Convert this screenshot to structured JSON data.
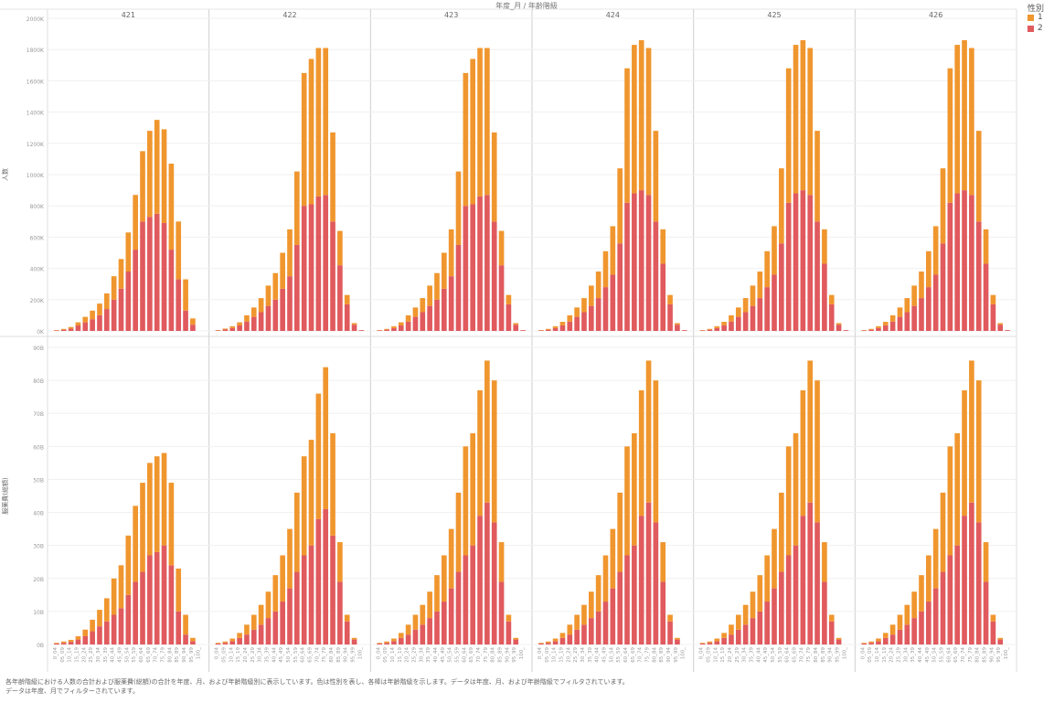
{
  "header_title": "年度_月 / 年齢階級",
  "years": [
    "421",
    "422",
    "423",
    "424",
    "425",
    "426"
  ],
  "legend": {
    "title": "性別",
    "items": [
      {
        "label": "1",
        "color": "#f0962e"
      },
      {
        "label": "2",
        "color": "#e05a5e"
      }
    ]
  },
  "caption": [
    "各年齢階級における人数の合計および服薬費(総額)の合計を年度、月、および年齢階級別に表示しています。色は性別を表し、各棒は年齢階級を示します。データは年度、月、および年齢階級でフィルタされています。",
    "データは年度、月でフィルターされています。"
  ],
  "chart_data": [
    {
      "type": "bar",
      "stacked": true,
      "ylabel": "人数",
      "yticks": [
        "0K",
        "200K",
        "400K",
        "600K",
        "800K",
        "1000K",
        "1200K",
        "1400K",
        "1600K",
        "1800K",
        "2000K"
      ],
      "ylim": [
        0,
        2000
      ],
      "grid": true,
      "panels": [
        {
          "year": "421",
          "series": [
            {
              "name": "1",
              "values": [
                2,
                5,
                10,
                20,
                35,
                55,
                75,
                100,
                150,
                190,
                250,
                350,
                450,
                550,
                600,
                600,
                550,
                370,
                200,
                40,
                0
              ]
            },
            {
              "name": "2",
              "values": [
                3,
                8,
                15,
                35,
                55,
                75,
                100,
                140,
                200,
                270,
                380,
                520,
                700,
                730,
                750,
                690,
                520,
                330,
                130,
                40,
                0
              ]
            }
          ]
        },
        {
          "year": "422",
          "series": [
            {
              "name": "1",
              "values": [
                2,
                6,
                12,
                20,
                40,
                60,
                90,
                130,
                170,
                230,
                300,
                470,
                850,
                930,
                950,
                940,
                570,
                220,
                60,
                10,
                0
              ]
            },
            {
              "name": "2",
              "values": [
                3,
                9,
                18,
                35,
                60,
                90,
                120,
                160,
                200,
                270,
                350,
                550,
                800,
                810,
                860,
                870,
                700,
                420,
                170,
                40,
                5
              ]
            }
          ]
        },
        {
          "year": "423",
          "series": [
            {
              "name": "1",
              "values": [
                2,
                5,
                12,
                20,
                40,
                60,
                90,
                130,
                170,
                230,
                300,
                470,
                850,
                930,
                950,
                940,
                570,
                220,
                60,
                10,
                0
              ]
            },
            {
              "name": "2",
              "values": [
                3,
                8,
                18,
                35,
                60,
                90,
                120,
                160,
                200,
                270,
                350,
                550,
                800,
                810,
                860,
                870,
                700,
                420,
                170,
                40,
                5
              ]
            }
          ]
        },
        {
          "year": "424",
          "series": [
            {
              "name": "1",
              "values": [
                2,
                5,
                12,
                22,
                40,
                60,
                90,
                130,
                170,
                230,
                310,
                480,
                860,
                950,
                960,
                940,
                580,
                220,
                60,
                10,
                0
              ]
            },
            {
              "name": "2",
              "values": [
                3,
                8,
                18,
                36,
                60,
                90,
                120,
                160,
                210,
                280,
                360,
                560,
                820,
                880,
                900,
                870,
                700,
                430,
                170,
                40,
                5
              ]
            }
          ]
        },
        {
          "year": "425",
          "series": [
            {
              "name": "1",
              "values": [
                2,
                5,
                12,
                22,
                40,
                60,
                90,
                130,
                170,
                230,
                310,
                480,
                860,
                950,
                960,
                940,
                580,
                220,
                60,
                10,
                0
              ]
            },
            {
              "name": "2",
              "values": [
                3,
                8,
                18,
                36,
                60,
                90,
                120,
                160,
                210,
                280,
                360,
                560,
                820,
                880,
                900,
                870,
                700,
                430,
                170,
                40,
                5
              ]
            }
          ]
        },
        {
          "year": "426",
          "series": [
            {
              "name": "1",
              "values": [
                2,
                5,
                12,
                22,
                40,
                60,
                90,
                130,
                170,
                230,
                310,
                480,
                860,
                950,
                960,
                940,
                580,
                220,
                60,
                10,
                0
              ]
            },
            {
              "name": "2",
              "values": [
                3,
                8,
                18,
                36,
                60,
                90,
                120,
                160,
                210,
                280,
                360,
                560,
                820,
                880,
                900,
                870,
                700,
                430,
                170,
                40,
                5
              ]
            }
          ]
        }
      ]
    },
    {
      "type": "bar",
      "stacked": true,
      "ylabel": "服薬費(総額)",
      "yticks": [
        "0B",
        "10B",
        "20B",
        "30B",
        "40B",
        "50B",
        "60B",
        "70B",
        "80B",
        "90B"
      ],
      "ylim": [
        0,
        90
      ],
      "grid": true,
      "xticks": [
        "0_04",
        "05_09",
        "10_14",
        "15_19",
        "20_24",
        "25_29",
        "30_34",
        "35_39",
        "40_44",
        "45_49",
        "50_54",
        "55_59",
        "60_64",
        "65_69",
        "70_74",
        "75_79",
        "80_84",
        "85_89",
        "90_94",
        "95_99",
        "100_"
      ],
      "panels": [
        {
          "year": "421",
          "series": [
            {
              "name": "1",
              "values": [
                0.2,
                0.4,
                0.6,
                1,
                2,
                3.5,
                5,
                7,
                11,
                13,
                18,
                23,
                27,
                28,
                29,
                28,
                25,
                13,
                6,
                1,
                0
              ]
            },
            {
              "name": "2",
              "values": [
                0.3,
                0.5,
                0.8,
                1.5,
                2.5,
                4,
                5.5,
                7,
                9,
                11,
                15,
                19,
                22,
                27,
                28,
                30,
                24,
                10,
                3,
                1,
                0
              ]
            }
          ]
        },
        {
          "year": "422",
          "series": [
            {
              "name": "1",
              "values": [
                0.2,
                0.4,
                0.8,
                1.5,
                3,
                4.5,
                6,
                8,
                11,
                14,
                18,
                24,
                30,
                32,
                38,
                43,
                31,
                12,
                2,
                0.5,
                0
              ]
            },
            {
              "name": "2",
              "values": [
                0.3,
                0.5,
                1,
                2,
                3,
                4.5,
                6,
                8,
                10,
                13,
                17,
                22,
                27,
                30,
                38,
                41,
                33,
                19,
                7,
                1.5,
                0
              ]
            }
          ]
        },
        {
          "year": "423",
          "series": [
            {
              "name": "1",
              "values": [
                0.2,
                0.4,
                0.8,
                1.5,
                3,
                4.5,
                6,
                8,
                11,
                14,
                18,
                24,
                33,
                34,
                38,
                43,
                43,
                12,
                2,
                0.5,
                0
              ]
            },
            {
              "name": "2",
              "values": [
                0.3,
                0.5,
                1,
                2,
                3,
                4.5,
                6,
                8,
                10,
                13,
                17,
                22,
                27,
                30,
                39,
                43,
                37,
                19,
                7,
                1.5,
                0
              ]
            }
          ]
        },
        {
          "year": "424",
          "series": [
            {
              "name": "1",
              "values": [
                0.2,
                0.4,
                0.8,
                1.5,
                3,
                4.5,
                6,
                8,
                11,
                14,
                18,
                24,
                33,
                34,
                38,
                43,
                43,
                12,
                2,
                0.5,
                0
              ]
            },
            {
              "name": "2",
              "values": [
                0.3,
                0.5,
                1,
                2,
                3,
                4.5,
                6,
                8,
                10,
                13,
                17,
                22,
                27,
                30,
                39,
                43,
                37,
                19,
                7,
                1.5,
                0
              ]
            }
          ]
        },
        {
          "year": "425",
          "series": [
            {
              "name": "1",
              "values": [
                0.2,
                0.4,
                0.8,
                1.5,
                3,
                4.5,
                6,
                8,
                11,
                14,
                18,
                24,
                33,
                34,
                38,
                43,
                43,
                12,
                2,
                0.5,
                0
              ]
            },
            {
              "name": "2",
              "values": [
                0.3,
                0.5,
                1,
                2,
                3,
                4.5,
                6,
                8,
                10,
                13,
                17,
                22,
                27,
                30,
                39,
                43,
                37,
                19,
                7,
                1.5,
                0
              ]
            }
          ]
        },
        {
          "year": "426",
          "series": [
            {
              "name": "1",
              "values": [
                0.2,
                0.4,
                0.8,
                1.5,
                3,
                4.5,
                6,
                8,
                11,
                14,
                18,
                24,
                33,
                34,
                38,
                43,
                43,
                12,
                2,
                0.5,
                0
              ]
            },
            {
              "name": "2",
              "values": [
                0.3,
                0.5,
                1,
                2,
                3,
                4.5,
                6,
                8,
                10,
                13,
                17,
                22,
                27,
                30,
                39,
                43,
                37,
                19,
                7,
                1.5,
                0
              ]
            }
          ]
        }
      ]
    }
  ]
}
